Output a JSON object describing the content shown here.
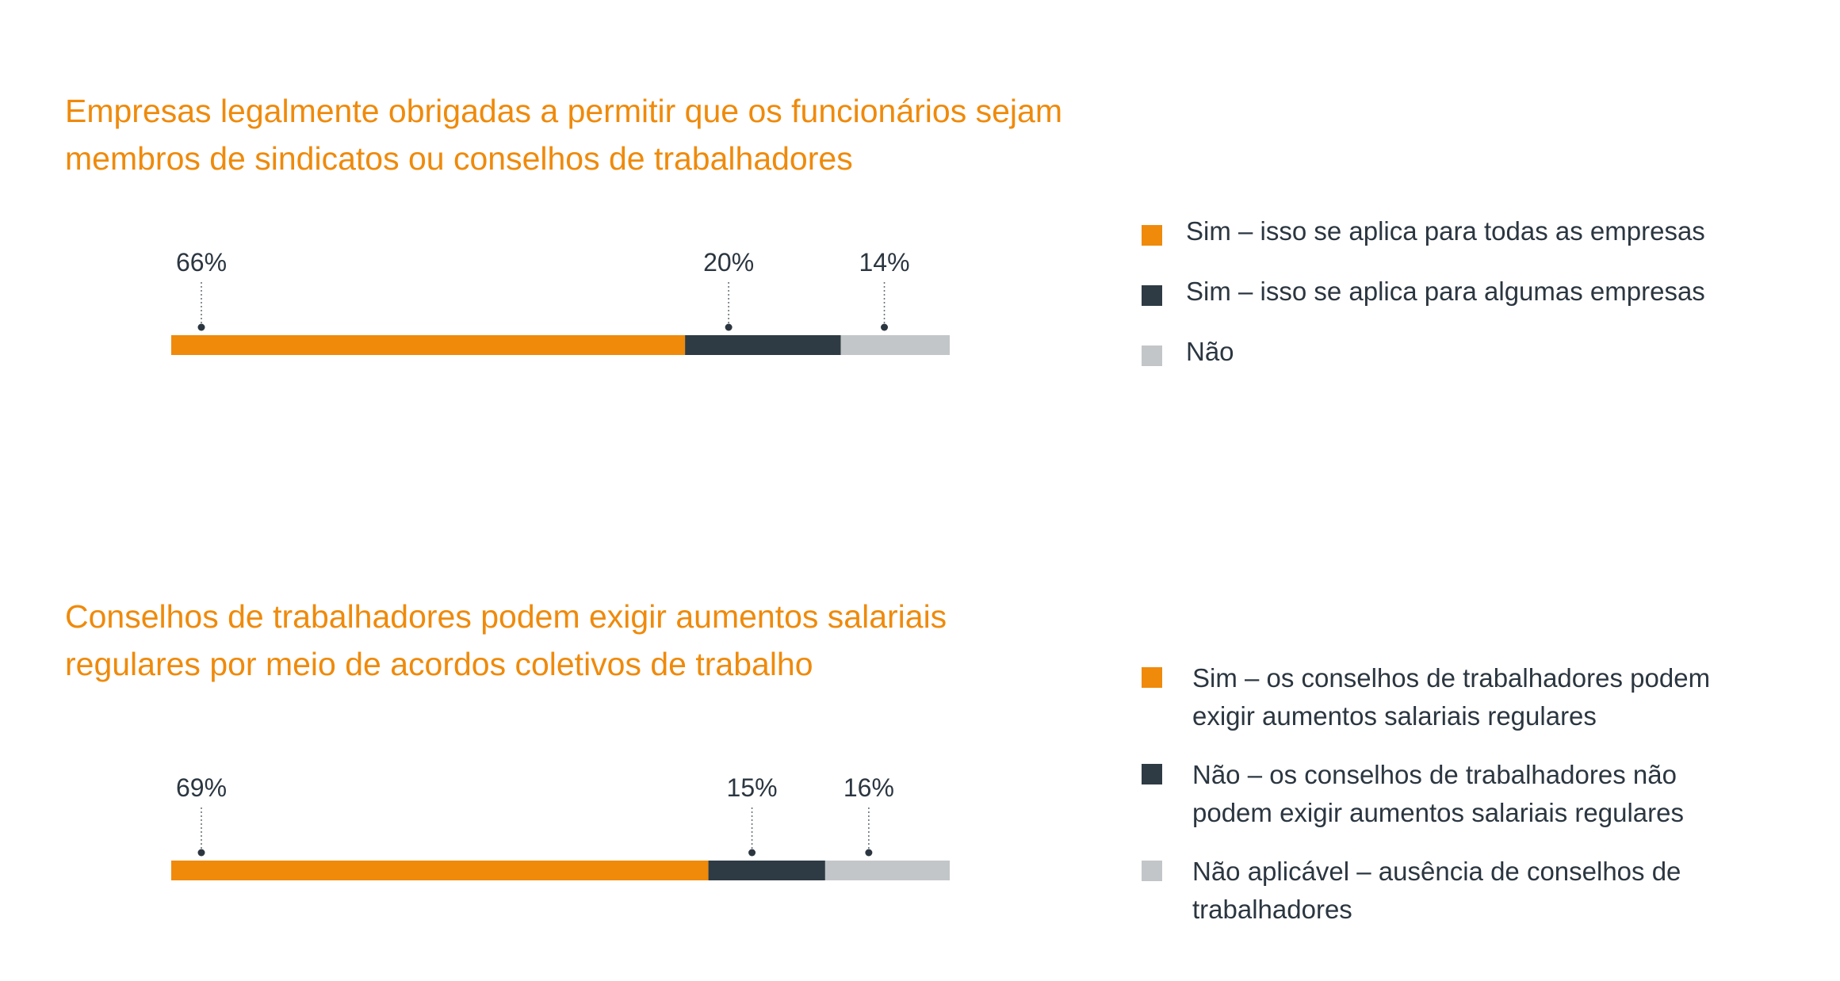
{
  "colors": {
    "orange": "#ef8a0b",
    "dark": "#2e3b44",
    "gray": "#c3c6c8",
    "title": "#ef8a0b",
    "text": "#2b3640"
  },
  "charts": [
    {
      "title_lines": [
        "Empresas legalmente obrigadas a permitir que os funcionários sejam",
        "membros de sindicatos ou conselhos de trabalhadores"
      ],
      "legend": [
        {
          "lines": [
            "Sim – isso se aplica para todas as empresas"
          ]
        },
        {
          "lines": [
            "Sim – isso se aplica para algumas empresas"
          ]
        },
        {
          "lines": [
            "Não"
          ]
        }
      ]
    },
    {
      "title_lines": [
        "Conselhos de trabalhadores podem exigir aumentos salariais",
        "regulares por meio de acordos coletivos de trabalho"
      ],
      "legend": [
        {
          "lines": [
            "Sim – os conselhos de trabalhadores podem",
            "exigir aumentos salariais regulares"
          ]
        },
        {
          "lines": [
            "Não – os conselhos de trabalhadores não",
            "podem exigir aumentos salariais regulares"
          ]
        },
        {
          "lines": [
            "Não aplicável – ausência de conselhos de",
            "trabalhadores"
          ]
        }
      ]
    }
  ],
  "chart_data": [
    {
      "type": "bar",
      "orientation": "horizontal-stacked",
      "title": "Empresas legalmente obrigadas a permitir que os funcionários sejam membros de sindicatos ou conselhos de trabalhadores",
      "series": [
        {
          "name": "Sim – isso se aplica para todas as empresas",
          "value": 66,
          "label": "66%",
          "color": "#ef8a0b"
        },
        {
          "name": "Sim – isso se aplica para algumas empresas",
          "value": 20,
          "label": "20%",
          "color": "#2e3b44"
        },
        {
          "name": "Não",
          "value": 14,
          "label": "14%",
          "color": "#c3c6c8"
        }
      ],
      "xlim": [
        0,
        100
      ],
      "legend_position": "right"
    },
    {
      "type": "bar",
      "orientation": "horizontal-stacked",
      "title": "Conselhos de trabalhadores podem exigir aumentos salariais regulares por meio de acordos coletivos de trabalho",
      "series": [
        {
          "name": "Sim – os conselhos de trabalhadores podem exigir aumentos salariais regulares",
          "value": 69,
          "label": "69%",
          "color": "#ef8a0b"
        },
        {
          "name": "Não – os conselhos de trabalhadores não podem exigir aumentos salariais regulares",
          "value": 15,
          "label": "15%",
          "color": "#2e3b44"
        },
        {
          "name": "Não aplicável – ausência de conselhos de trabalhadores",
          "value": 16,
          "label": "16%",
          "color": "#c3c6c8"
        }
      ],
      "xlim": [
        0,
        100
      ],
      "legend_position": "right"
    }
  ]
}
